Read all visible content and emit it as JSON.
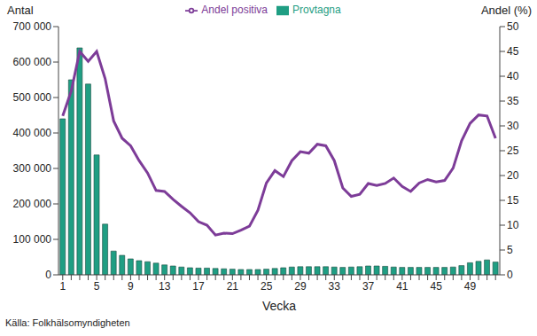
{
  "chart_data": {
    "type": "bar",
    "x_label": "Vecka",
    "y_label": "Antal",
    "y2_label": "Andel (%)",
    "source": "Källa: Folkhälsomyndigheten",
    "legend": "top",
    "grid": false,
    "categories": [
      "1",
      null,
      null,
      null,
      "5",
      null,
      null,
      null,
      "9",
      null,
      null,
      null,
      "13",
      null,
      null,
      null,
      "17",
      null,
      null,
      null,
      "21",
      null,
      null,
      null,
      "25",
      null,
      null,
      null,
      "29",
      null,
      null,
      null,
      "33",
      null,
      null,
      null,
      "37",
      null,
      null,
      null,
      "41",
      null,
      null,
      null,
      "45",
      null,
      null,
      null,
      "49",
      null,
      null,
      null
    ],
    "ylim": [
      0,
      700000
    ],
    "yticks": [
      0,
      {
        "value": 100000,
        "label": "100 000"
      },
      {
        "value": 200000,
        "label": "200 000"
      },
      {
        "value": 300000,
        "label": "300 000"
      },
      {
        "value": 400000,
        "label": "400 000"
      },
      {
        "value": 500000,
        "label": "500 000"
      },
      {
        "value": 600000,
        "label": "600 000"
      },
      {
        "value": 700000,
        "label": "700 000"
      }
    ],
    "y2lim": [
      0,
      50
    ],
    "y2ticks": [
      0,
      5,
      10,
      15,
      20,
      25,
      30,
      35,
      40,
      45,
      50
    ],
    "series": [
      {
        "name": "Provtagna",
        "type": "bar",
        "color": "#1f9e83",
        "values": [
          440000,
          550000,
          640000,
          538000,
          338000,
          143000,
          67000,
          55000,
          45000,
          40000,
          37000,
          33000,
          28000,
          25000,
          22000,
          20000,
          19000,
          19000,
          18000,
          17000,
          16000,
          15000,
          15000,
          15000,
          16000,
          18000,
          20000,
          22000,
          23000,
          23000,
          23000,
          23000,
          22000,
          21000,
          22000,
          23000,
          25000,
          25000,
          24000,
          22000,
          21000,
          21000,
          21000,
          21000,
          21000,
          21000,
          22000,
          26000,
          34000,
          38000,
          42000,
          36000
        ]
      },
      {
        "name": "Andel positiva",
        "type": "line",
        "axis": "y2",
        "color": "#7d3c98",
        "values": [
          32,
          37,
          45,
          43,
          45,
          39.5,
          31,
          27.5,
          26,
          23,
          20.5,
          17,
          16.8,
          15.2,
          13.8,
          12.5,
          10.7,
          10,
          8,
          8.4,
          8.3,
          9,
          9.8,
          13,
          18.5,
          21,
          19.8,
          23,
          24.8,
          24.5,
          26.3,
          26,
          23,
          17.5,
          15.8,
          16.2,
          18.4,
          18,
          18.4,
          19.5,
          17.8,
          16.8,
          18.5,
          19.2,
          18.7,
          19,
          21.5,
          27,
          30.5,
          32.2,
          32,
          27.5
        ]
      }
    ]
  }
}
